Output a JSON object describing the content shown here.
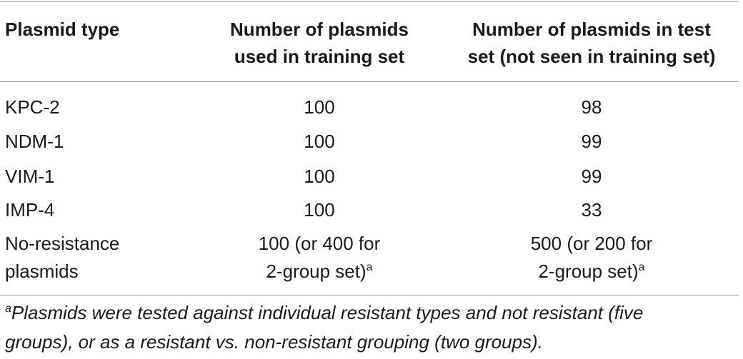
{
  "table": {
    "headers": {
      "col1": "Plasmid type",
      "col2_line1": "Number of plasmids",
      "col2_line2": "used in training set",
      "col3_line1": "Number of plasmids in test",
      "col3_line2": "set (not seen in training set)"
    },
    "rows": [
      {
        "type": "KPC-2",
        "training": "100",
        "test": "98"
      },
      {
        "type": "NDM-1",
        "training": "100",
        "test": "99"
      },
      {
        "type": "VIM-1",
        "training": "100",
        "test": "99"
      },
      {
        "type": "IMP-4",
        "training": "100",
        "test": "33"
      }
    ],
    "last_row": {
      "type_line1": "No-resistance",
      "type_line2": "plasmids",
      "training_line1": "100 (or 400 for",
      "training_line2": "2-group set)",
      "test_line1": "500 (or 200 for",
      "test_line2": "2-group set)",
      "footnote_mark": "a"
    }
  },
  "footnote": {
    "mark": "a",
    "line1": "Plasmids were tested against individual resistant types and not resistant (five",
    "line2": "groups), or as a resistant vs. non-resistant grouping (two groups)."
  }
}
